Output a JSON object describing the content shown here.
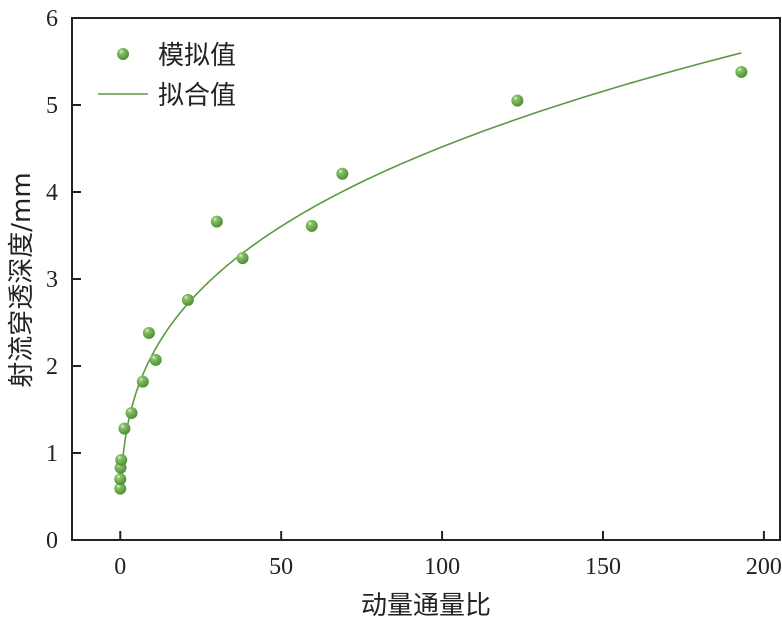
{
  "chart_data": {
    "type": "scatter",
    "title": "",
    "xlabel": "动量通量比",
    "ylabel": "射流穿透深度/mm",
    "xlim": [
      -15,
      205
    ],
    "ylim": [
      0,
      6
    ],
    "xticks": [
      0,
      50,
      100,
      150,
      200
    ],
    "yticks": [
      0,
      1,
      2,
      3,
      4,
      5,
      6
    ],
    "grid": false,
    "legend_position": "top-left",
    "series": [
      {
        "name": "模拟值",
        "kind": "scatter",
        "color": "#6aaa4a",
        "points": [
          [
            0,
            0.59
          ],
          [
            0,
            0.7
          ],
          [
            0.1,
            0.83
          ],
          [
            0.3,
            0.92
          ],
          [
            1.3,
            1.28
          ],
          [
            3.5,
            1.46
          ],
          [
            7,
            1.82
          ],
          [
            8.9,
            2.38
          ],
          [
            11,
            2.07
          ],
          [
            21,
            2.76
          ],
          [
            30,
            3.66
          ],
          [
            38,
            3.24
          ],
          [
            59.5,
            3.61
          ],
          [
            69,
            4.21
          ],
          [
            123.4,
            5.05
          ],
          [
            193,
            5.38
          ]
        ]
      },
      {
        "name": "拟合值",
        "kind": "line",
        "color": "#5a9a44",
        "fit": {
          "form": "y = a * x^b",
          "a": 1.007,
          "b": 0.326,
          "x_range": [
            0.3,
            193
          ]
        }
      }
    ]
  }
}
